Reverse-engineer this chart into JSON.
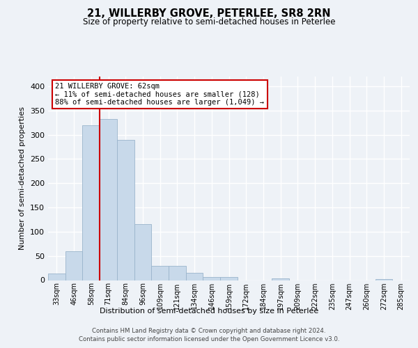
{
  "title": "21, WILLERBY GROVE, PETERLEE, SR8 2RN",
  "subtitle": "Size of property relative to semi-detached houses in Peterlee",
  "xlabel": "Distribution of semi-detached houses by size in Peterlee",
  "ylabel": "Number of semi-detached properties",
  "bin_labels": [
    "33sqm",
    "46sqm",
    "58sqm",
    "71sqm",
    "84sqm",
    "96sqm",
    "109sqm",
    "121sqm",
    "134sqm",
    "146sqm",
    "159sqm",
    "172sqm",
    "184sqm",
    "197sqm",
    "209sqm",
    "222sqm",
    "235sqm",
    "247sqm",
    "260sqm",
    "272sqm",
    "285sqm"
  ],
  "bar_heights": [
    13,
    60,
    320,
    332,
    290,
    115,
    30,
    30,
    15,
    6,
    6,
    0,
    0,
    3,
    0,
    0,
    0,
    0,
    0,
    2,
    0
  ],
  "bar_color": "#c8d9ea",
  "bar_edge_color": "#9ab4cc",
  "background_color": "#eef2f7",
  "grid_color": "#ffffff",
  "red_line_x": 2.5,
  "annotation_text": "21 WILLERBY GROVE: 62sqm\n← 11% of semi-detached houses are smaller (128)\n88% of semi-detached houses are larger (1,049) →",
  "annotation_box_color": "#ffffff",
  "annotation_box_edge": "#cc0000",
  "ylim": [
    0,
    420
  ],
  "yticks": [
    0,
    50,
    100,
    150,
    200,
    250,
    300,
    350,
    400
  ],
  "footer_line1": "Contains HM Land Registry data © Crown copyright and database right 2024.",
  "footer_line2": "Contains public sector information licensed under the Open Government Licence v3.0."
}
